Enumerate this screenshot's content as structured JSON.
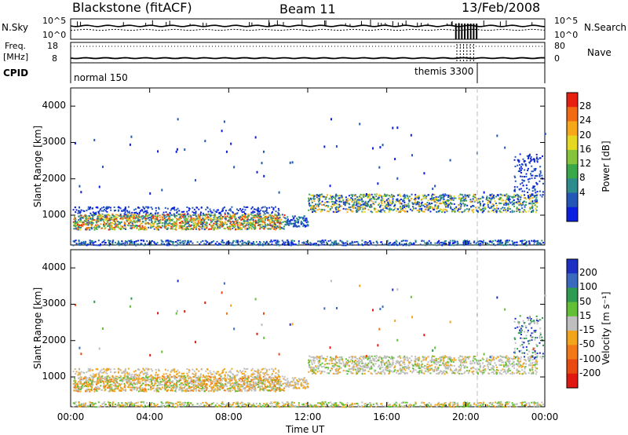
{
  "header": {
    "radar": "Blackstone (fitACF)",
    "beam": "Beam 11",
    "date": "13/Feb/2008"
  },
  "panel_nsky": {
    "left_label": "N.Sky",
    "right_label": "N.Search",
    "tick_top_left": "10^5",
    "tick_bottom_left": "10^0",
    "tick_top_right": "10^5",
    "tick_bottom_right": "10^0"
  },
  "panel_freq": {
    "left_label_1": "Freq.",
    "left_label_2": "[MHz]",
    "right_label": "Nave",
    "tick_top_left": "18",
    "tick_bottom_left": "8",
    "tick_top_right": "80",
    "tick_bottom_right": "0"
  },
  "panel_cpid": {
    "label": "CPID",
    "program_1": "normal 150",
    "program_2": "themis 3300"
  },
  "colorbar_power": {
    "label": "Power [dB]",
    "ticks": [
      "28",
      "24",
      "20",
      "16",
      "12",
      "8",
      "4"
    ],
    "colors": [
      "#0a1fe0",
      "#2257b8",
      "#2e8c8c",
      "#3aa848",
      "#86c43c",
      "#e6d820",
      "#f6a818",
      "#f26a12",
      "#e82010"
    ]
  },
  "colorbar_velocity": {
    "label": "Velocity [m s⁻¹]",
    "ticks": [
      "200",
      "100",
      "50",
      "15",
      "-15",
      "-50",
      "-100",
      "-200"
    ],
    "colors": [
      "#1c30c4",
      "#3a6ac0",
      "#2e9a52",
      "#62c036",
      "#bfbfbf",
      "#f2a41a",
      "#f27818",
      "#e84a10",
      "#e01810"
    ]
  },
  "chart_data": [
    {
      "type": "heatmap",
      "title": "",
      "xlabel": "",
      "ylabel": "Slant Range [km]",
      "x_ticks": [
        "00:00",
        "04:00",
        "08:00",
        "12:00",
        "16:00",
        "20:00",
        "00:00"
      ],
      "y_ticks": [
        "1000",
        "2000",
        "3000",
        "4000"
      ],
      "xlim_hours": [
        0,
        24
      ],
      "ylim_km": [
        180,
        4500
      ],
      "color_quantity": "Power [dB]",
      "color_range": [
        0,
        30
      ],
      "regions": [
        {
          "t_start": 0.0,
          "t_end": 10.8,
          "range_low_km": 600,
          "range_high_km": 1100,
          "power_db": "8-28",
          "note": "strong E/F backscatter band"
        },
        {
          "t_start": 10.8,
          "t_end": 12.0,
          "range_low_km": 700,
          "range_high_km": 1000,
          "power_db": "4-12"
        },
        {
          "t_start": 12.0,
          "t_end": 24.0,
          "range_low_km": 1000,
          "range_high_km": 1600,
          "power_db": "4-24"
        },
        {
          "t_start": 0.0,
          "t_end": 24.0,
          "range_low_km": 180,
          "range_high_km": 300,
          "power_db": "4-12",
          "note": "near-range ground band"
        }
      ]
    },
    {
      "type": "heatmap",
      "title": "",
      "xlabel": "Time UT",
      "ylabel": "Slant Range [km]",
      "x_ticks": [
        "00:00",
        "04:00",
        "08:00",
        "12:00",
        "16:00",
        "20:00",
        "00:00"
      ],
      "y_ticks": [
        "1000",
        "2000",
        "3000",
        "4000"
      ],
      "xlim_hours": [
        0,
        24
      ],
      "ylim_km": [
        180,
        4500
      ],
      "color_quantity": "Velocity [m s⁻¹]",
      "color_range": [
        -200,
        200
      ],
      "regions": [
        {
          "t_start": 0.0,
          "t_end": 10.8,
          "range_low_km": 600,
          "range_high_km": 1100,
          "velocity": "-100 to -15",
          "note": "mostly orange / grey"
        },
        {
          "t_start": 12.0,
          "t_end": 24.0,
          "range_low_km": 1000,
          "range_high_km": 1600,
          "velocity": "-15 to 15",
          "note": "mostly grey"
        },
        {
          "t_start": 0.0,
          "t_end": 24.0,
          "range_low_km": 180,
          "range_high_km": 300,
          "velocity": "-50 to 15"
        }
      ]
    }
  ]
}
